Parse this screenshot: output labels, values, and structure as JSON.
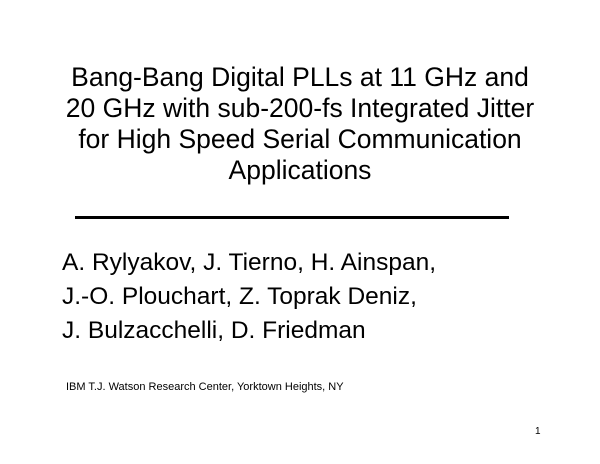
{
  "slide": {
    "title_lines": [
      "Bang-Bang Digital PLLs at 11 GHz and",
      "20 GHz with sub-200-fs Integrated Jitter",
      "for High Speed Serial Communication",
      "Applications"
    ],
    "author_lines": [
      "A. Rylyakov, J. Tierno, H. Ainspan,",
      "J.-O. Plouchart, Z. Toprak Deniz,",
      "J. Bulzacchelli, D. Friedman"
    ],
    "affiliation": "IBM T.J. Watson Research Center, Yorktown Heights, NY",
    "page_number": "1"
  }
}
